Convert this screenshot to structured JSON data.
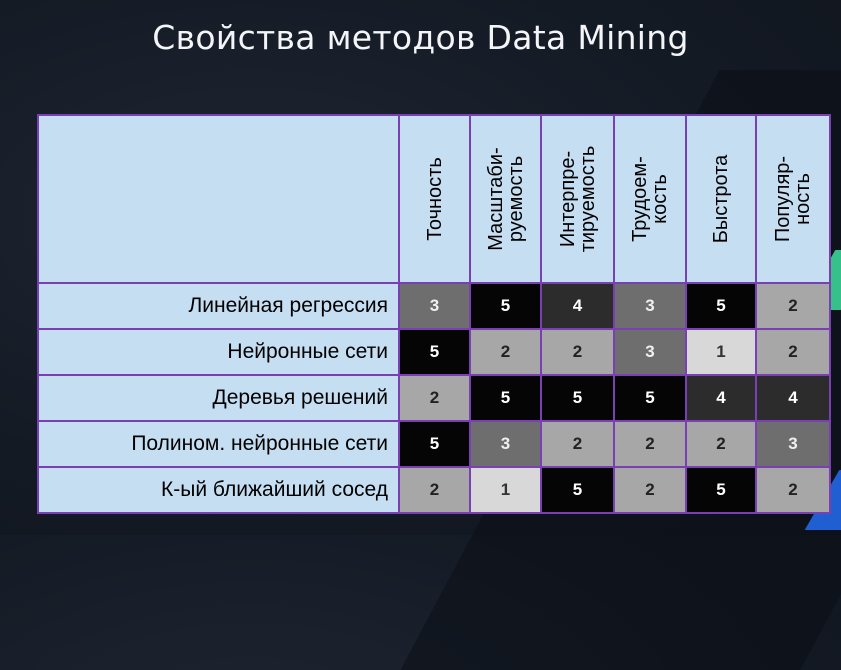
{
  "title": "Свойства методов Data Mining",
  "columns": [
    "Точность",
    "Масштаби-\nруемость",
    "Интерпре-\nтируемость",
    "Трудоем-\nкость",
    "Быстрота",
    "Популяр-\nность"
  ],
  "rows": [
    {
      "label": "Линейная регрессия",
      "values": [
        "3",
        "5",
        "4",
        "3",
        "5",
        "2"
      ]
    },
    {
      "label": "Нейронные сети",
      "values": [
        "5",
        "2",
        "2",
        "3",
        "1",
        "2"
      ]
    },
    {
      "label": "Деревья решений",
      "values": [
        "2",
        "5",
        "5",
        "5",
        "4",
        "4"
      ]
    },
    {
      "label": "Полином. нейронные сети",
      "values": [
        "5",
        "3",
        "2",
        "2",
        "2",
        "3"
      ]
    },
    {
      "label": "К-ый ближайший сосед",
      "values": [
        "2",
        "1",
        "5",
        "2",
        "5",
        "2"
      ]
    }
  ]
}
